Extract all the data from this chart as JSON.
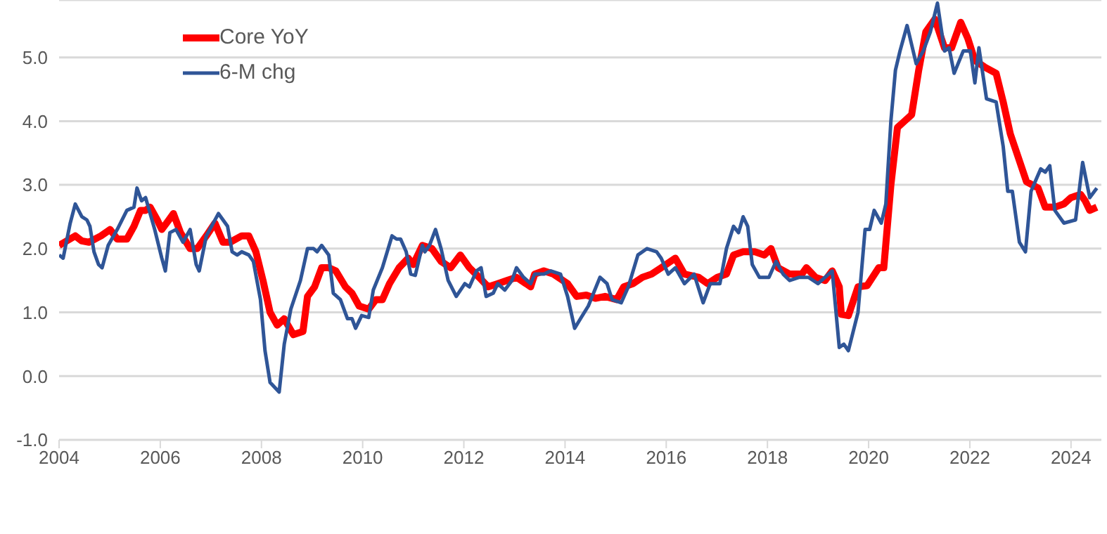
{
  "chart_data": {
    "type": "line",
    "xlim": [
      2004,
      2024.6
    ],
    "xticks": [
      2004,
      2006,
      2008,
      2010,
      2012,
      2014,
      2016,
      2018,
      2020,
      2022,
      2024
    ],
    "ylim": [
      -1,
      5.9
    ],
    "yticks": [
      {
        "value": -1,
        "label": "-1.0"
      },
      {
        "value": 0,
        "label": "0.0"
      },
      {
        "value": 1,
        "label": "1.0"
      },
      {
        "value": 2,
        "label": "2.0"
      },
      {
        "value": 3,
        "label": "3.0"
      },
      {
        "value": 4,
        "label": "4.0"
      },
      {
        "value": 5,
        "label": "5.0"
      }
    ],
    "grid": "y",
    "legend": "top left",
    "marker": "none",
    "line_style": "solid",
    "series": [
      {
        "name": "Core YoY",
        "color": "#ff0000",
        "x": [
          2004.0,
          2004.32,
          2004.45,
          2004.59,
          2004.83,
          2005.01,
          2005.15,
          2005.34,
          2005.48,
          2005.61,
          2005.71,
          2005.8,
          2005.94,
          2006.03,
          2006.17,
          2006.26,
          2006.4,
          2006.59,
          2006.73,
          2006.91,
          2007.08,
          2007.24,
          2007.38,
          2007.61,
          2007.75,
          2007.89,
          2008.03,
          2008.17,
          2008.31,
          2008.45,
          2008.63,
          2008.82,
          2008.91,
          2009.05,
          2009.19,
          2009.33,
          2009.47,
          2009.66,
          2009.79,
          2009.93,
          2010.12,
          2010.26,
          2010.39,
          2010.53,
          2010.72,
          2010.9,
          2011.0,
          2011.18,
          2011.37,
          2011.55,
          2011.74,
          2011.93,
          2012.11,
          2012.3,
          2012.48,
          2012.67,
          2012.85,
          2013.04,
          2013.23,
          2013.32,
          2013.4,
          2013.58,
          2013.77,
          2014.05,
          2014.23,
          2014.42,
          2014.6,
          2014.79,
          2015.02,
          2015.16,
          2015.34,
          2015.53,
          2015.71,
          2015.9,
          2016.18,
          2016.36,
          2016.64,
          2016.82,
          2017.01,
          2017.19,
          2017.33,
          2017.52,
          2017.75,
          2017.94,
          2018.07,
          2018.21,
          2018.44,
          2018.68,
          2018.77,
          2018.95,
          2019.14,
          2019.28,
          2019.42,
          2019.46,
          2019.6,
          2019.79,
          2019.97,
          2020.2,
          2020.3,
          2020.44,
          2020.57,
          2020.71,
          2020.85,
          2020.99,
          2021.13,
          2021.31,
          2021.5,
          2021.64,
          2021.82,
          2021.96,
          2022.1,
          2022.29,
          2022.52,
          2022.66,
          2022.8,
          2023.12,
          2023.35,
          2023.49,
          2023.68,
          2023.86,
          2024.0,
          2024.19,
          2024.28,
          2024.37,
          2024.51
        ],
        "values": [
          2.05,
          2.2,
          2.12,
          2.1,
          2.2,
          2.3,
          2.15,
          2.15,
          2.35,
          2.6,
          2.6,
          2.65,
          2.45,
          2.3,
          2.45,
          2.55,
          2.25,
          2.0,
          2.0,
          2.2,
          2.4,
          2.1,
          2.1,
          2.2,
          2.2,
          1.95,
          1.5,
          1.0,
          0.8,
          0.9,
          0.65,
          0.7,
          1.25,
          1.4,
          1.7,
          1.7,
          1.65,
          1.4,
          1.3,
          1.1,
          1.05,
          1.2,
          1.2,
          1.45,
          1.7,
          1.85,
          1.75,
          2.05,
          2.0,
          1.8,
          1.7,
          1.9,
          1.7,
          1.55,
          1.4,
          1.45,
          1.5,
          1.55,
          1.45,
          1.4,
          1.6,
          1.65,
          1.6,
          1.45,
          1.25,
          1.27,
          1.22,
          1.25,
          1.2,
          1.4,
          1.45,
          1.55,
          1.6,
          1.7,
          1.85,
          1.6,
          1.55,
          1.45,
          1.55,
          1.6,
          1.9,
          1.95,
          1.95,
          1.9,
          2.0,
          1.7,
          1.6,
          1.6,
          1.7,
          1.55,
          1.5,
          1.65,
          1.4,
          0.97,
          0.95,
          1.4,
          1.42,
          1.7,
          1.7,
          3.0,
          3.9,
          4.0,
          4.1,
          4.8,
          5.4,
          5.6,
          5.15,
          5.15,
          5.55,
          5.3,
          4.95,
          4.85,
          4.75,
          4.3,
          3.8,
          3.05,
          2.95,
          2.65,
          2.65,
          2.7,
          2.8,
          2.85,
          2.75,
          2.6,
          2.65
        ]
      },
      {
        "name": "6-M chg",
        "color": "#2f5597",
        "x": [
          2004.0,
          2004.08,
          2004.22,
          2004.32,
          2004.45,
          2004.55,
          2004.61,
          2004.69,
          2004.78,
          2004.85,
          2004.97,
          2005.15,
          2005.34,
          2005.48,
          2005.54,
          2005.63,
          2005.71,
          2005.89,
          2006.03,
          2006.1,
          2006.19,
          2006.31,
          2006.45,
          2006.59,
          2006.71,
          2006.77,
          2006.91,
          2007.15,
          2007.33,
          2007.42,
          2007.52,
          2007.61,
          2007.75,
          2007.84,
          2007.98,
          2008.07,
          2008.17,
          2008.35,
          2008.45,
          2008.58,
          2008.77,
          2008.91,
          2009.03,
          2009.1,
          2009.19,
          2009.33,
          2009.42,
          2009.56,
          2009.7,
          2009.79,
          2009.86,
          2009.98,
          2010.12,
          2010.21,
          2010.39,
          2010.58,
          2010.67,
          2010.75,
          2010.86,
          2010.95,
          2011.04,
          2011.18,
          2011.23,
          2011.32,
          2011.44,
          2011.55,
          2011.69,
          2011.85,
          2012.02,
          2012.11,
          2012.25,
          2012.34,
          2012.44,
          2012.58,
          2012.67,
          2012.81,
          2012.95,
          2013.04,
          2013.18,
          2013.32,
          2013.4,
          2013.58,
          2013.72,
          2013.91,
          2014.05,
          2014.19,
          2014.32,
          2014.46,
          2014.69,
          2014.83,
          2014.93,
          2015.11,
          2015.25,
          2015.44,
          2015.62,
          2015.81,
          2015.9,
          2016.04,
          2016.18,
          2016.36,
          2016.55,
          2016.73,
          2016.87,
          2017.06,
          2017.19,
          2017.33,
          2017.43,
          2017.52,
          2017.61,
          2017.7,
          2017.84,
          2018.03,
          2018.17,
          2018.31,
          2018.44,
          2018.63,
          2018.81,
          2019.0,
          2019.28,
          2019.42,
          2019.51,
          2019.6,
          2019.79,
          2019.93,
          2020.02,
          2020.11,
          2020.25,
          2020.34,
          2020.44,
          2020.53,
          2020.62,
          2020.76,
          2020.94,
          2021.08,
          2021.22,
          2021.36,
          2021.5,
          2021.59,
          2021.69,
          2021.87,
          2022.01,
          2022.1,
          2022.18,
          2022.33,
          2022.52,
          2022.66,
          2022.75,
          2022.84,
          2022.98,
          2023.1,
          2023.21,
          2023.4,
          2023.49,
          2023.58,
          2023.68,
          2023.86,
          2024.09,
          2024.23,
          2024.37,
          2024.51
        ],
        "values": [
          1.9,
          1.85,
          2.4,
          2.7,
          2.5,
          2.45,
          2.35,
          1.95,
          1.75,
          1.7,
          2.05,
          2.3,
          2.6,
          2.65,
          2.95,
          2.75,
          2.8,
          2.3,
          1.85,
          1.65,
          2.25,
          2.3,
          2.1,
          2.3,
          1.75,
          1.65,
          2.2,
          2.55,
          2.35,
          1.95,
          1.9,
          1.95,
          1.9,
          1.8,
          1.2,
          0.4,
          -0.1,
          -0.25,
          0.5,
          1.05,
          1.5,
          2.0,
          2.0,
          1.95,
          2.05,
          1.9,
          1.3,
          1.2,
          0.9,
          0.9,
          0.75,
          0.95,
          0.92,
          1.35,
          1.7,
          2.2,
          2.15,
          2.15,
          1.95,
          1.6,
          1.58,
          2.05,
          1.95,
          2.05,
          2.3,
          2.0,
          1.5,
          1.25,
          1.45,
          1.4,
          1.65,
          1.7,
          1.25,
          1.3,
          1.45,
          1.35,
          1.5,
          1.7,
          1.55,
          1.45,
          1.6,
          1.6,
          1.65,
          1.6,
          1.25,
          0.75,
          0.92,
          1.1,
          1.55,
          1.45,
          1.2,
          1.15,
          1.4,
          1.9,
          2.0,
          1.95,
          1.85,
          1.6,
          1.7,
          1.45,
          1.6,
          1.15,
          1.45,
          1.45,
          2.0,
          2.35,
          2.25,
          2.5,
          2.35,
          1.75,
          1.55,
          1.55,
          1.8,
          1.6,
          1.5,
          1.55,
          1.55,
          1.45,
          1.65,
          0.45,
          0.5,
          0.4,
          1.0,
          2.3,
          2.3,
          2.6,
          2.4,
          2.7,
          4.0,
          4.8,
          5.1,
          5.5,
          4.9,
          5.1,
          5.4,
          5.85,
          5.1,
          5.15,
          4.75,
          5.1,
          5.1,
          4.6,
          5.15,
          4.35,
          4.3,
          3.6,
          2.9,
          2.9,
          2.1,
          1.95,
          2.9,
          3.25,
          3.2,
          3.3,
          2.6,
          2.4,
          2.45,
          3.35,
          2.8,
          2.95
        ]
      }
    ]
  }
}
